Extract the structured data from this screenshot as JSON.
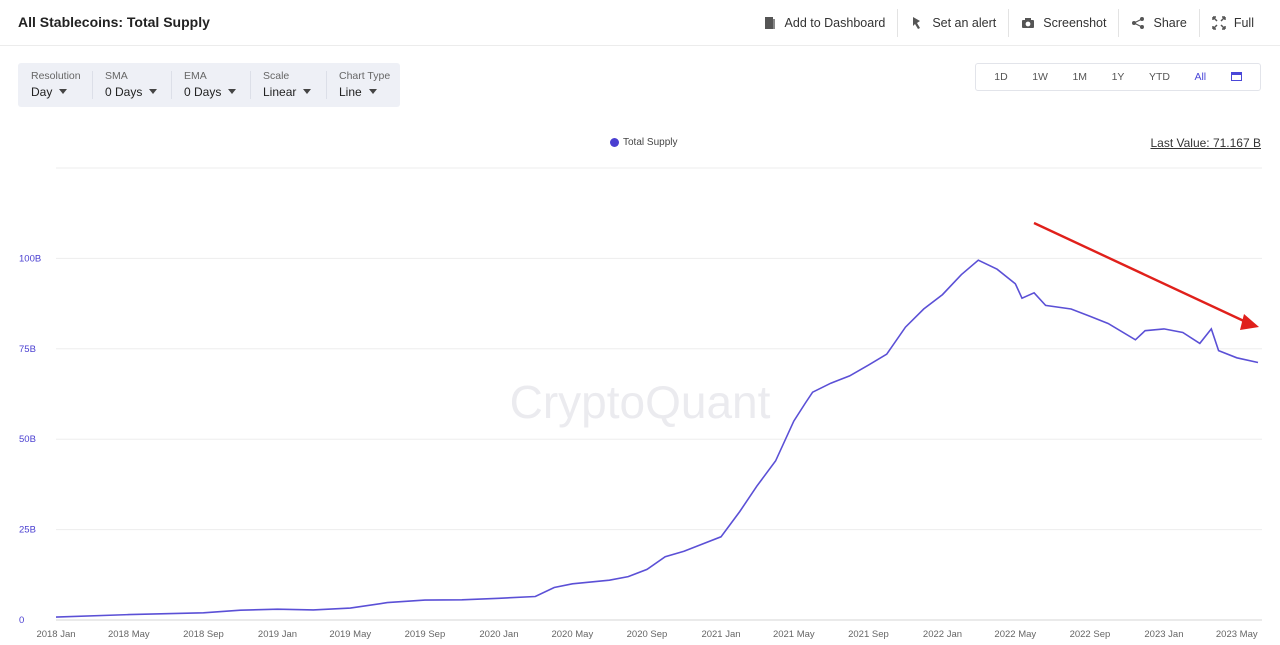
{
  "header": {
    "title": "All Stablecoins: Total Supply",
    "actions": [
      {
        "label": "Add to Dashboard",
        "icon": "dashboard-icon"
      },
      {
        "label": "Set an alert",
        "icon": "bell-icon"
      },
      {
        "label": "Screenshot",
        "icon": "camera-icon"
      },
      {
        "label": "Share",
        "icon": "share-icon"
      },
      {
        "label": "Full",
        "icon": "fullscreen-icon"
      }
    ]
  },
  "controls": [
    {
      "label": "Resolution",
      "value": "Day"
    },
    {
      "label": "SMA",
      "value": "0 Days"
    },
    {
      "label": "EMA",
      "value": "0 Days"
    },
    {
      "label": "Scale",
      "value": "Linear"
    },
    {
      "label": "Chart Type",
      "value": "Line"
    }
  ],
  "ranges": [
    "1D",
    "1W",
    "1M",
    "1Y",
    "YTD",
    "All"
  ],
  "active_range": "All",
  "legend_label": "Total Supply",
  "last_value_label": "Last Value: 71.167 B",
  "watermark": "CryptoQuant",
  "colors": {
    "line": "#5b50d6",
    "arrow": "#e0201b",
    "accent": "#4a47d8"
  },
  "chart_data": {
    "type": "line",
    "ylim": [
      0,
      125
    ],
    "y_unit": "B",
    "y_ticks": [
      "0",
      "25B",
      "50B",
      "75B",
      "100B"
    ],
    "x_ticks": [
      "2018 Jan",
      "2018 May",
      "2018 Sep",
      "2019 Jan",
      "2019 May",
      "2019 Sep",
      "2020 Jan",
      "2020 May",
      "2020 Sep",
      "2021 Jan",
      "2021 May",
      "2021 Sep",
      "2022 Jan",
      "2022 May",
      "2022 Sep",
      "2023 Jan",
      "2023 May"
    ],
    "grid": true,
    "legend": "top-center",
    "series": [
      {
        "name": "Total Supply",
        "points": [
          [
            "2018-01-01",
            0.8
          ],
          [
            "2018-05-01",
            1.5
          ],
          [
            "2018-09-01",
            2.0
          ],
          [
            "2018-11-01",
            2.7
          ],
          [
            "2019-01-01",
            3.0
          ],
          [
            "2019-03-01",
            2.8
          ],
          [
            "2019-05-01",
            3.3
          ],
          [
            "2019-07-01",
            4.8
          ],
          [
            "2019-09-01",
            5.5
          ],
          [
            "2019-11-01",
            5.6
          ],
          [
            "2020-01-01",
            6.0
          ],
          [
            "2020-03-01",
            6.5
          ],
          [
            "2020-04-01",
            9.0
          ],
          [
            "2020-05-01",
            10.0
          ],
          [
            "2020-07-01",
            11.0
          ],
          [
            "2020-08-01",
            12.0
          ],
          [
            "2020-09-01",
            14.0
          ],
          [
            "2020-10-01",
            17.5
          ],
          [
            "2020-11-01",
            19.0
          ],
          [
            "2020-12-01",
            21.0
          ],
          [
            "2021-01-01",
            23.0
          ],
          [
            "2021-02-01",
            30.0
          ],
          [
            "2021-03-01",
            37.0
          ],
          [
            "2021-04-01",
            44.0
          ],
          [
            "2021-05-01",
            55.0
          ],
          [
            "2021-05-20",
            60.0
          ],
          [
            "2021-06-01",
            63.0
          ],
          [
            "2021-07-01",
            65.5
          ],
          [
            "2021-08-01",
            67.5
          ],
          [
            "2021-09-01",
            70.5
          ],
          [
            "2021-10-01",
            73.5
          ],
          [
            "2021-11-01",
            81.0
          ],
          [
            "2021-12-01",
            86.0
          ],
          [
            "2022-01-01",
            90.0
          ],
          [
            "2022-02-01",
            95.5
          ],
          [
            "2022-03-01",
            99.5
          ],
          [
            "2022-04-01",
            97.0
          ],
          [
            "2022-05-01",
            93.0
          ],
          [
            "2022-05-12",
            89.0
          ],
          [
            "2022-06-01",
            90.5
          ],
          [
            "2022-06-20",
            87.0
          ],
          [
            "2022-08-01",
            86.0
          ],
          [
            "2022-09-01",
            84.0
          ],
          [
            "2022-10-01",
            82.0
          ],
          [
            "2022-11-15",
            77.5
          ],
          [
            "2022-12-01",
            80.0
          ],
          [
            "2023-01-01",
            80.5
          ],
          [
            "2023-02-01",
            79.5
          ],
          [
            "2023-03-01",
            76.5
          ],
          [
            "2023-03-20",
            80.5
          ],
          [
            "2023-04-01",
            74.5
          ],
          [
            "2023-05-01",
            72.5
          ],
          [
            "2023-06-05",
            71.2
          ]
        ]
      }
    ]
  }
}
